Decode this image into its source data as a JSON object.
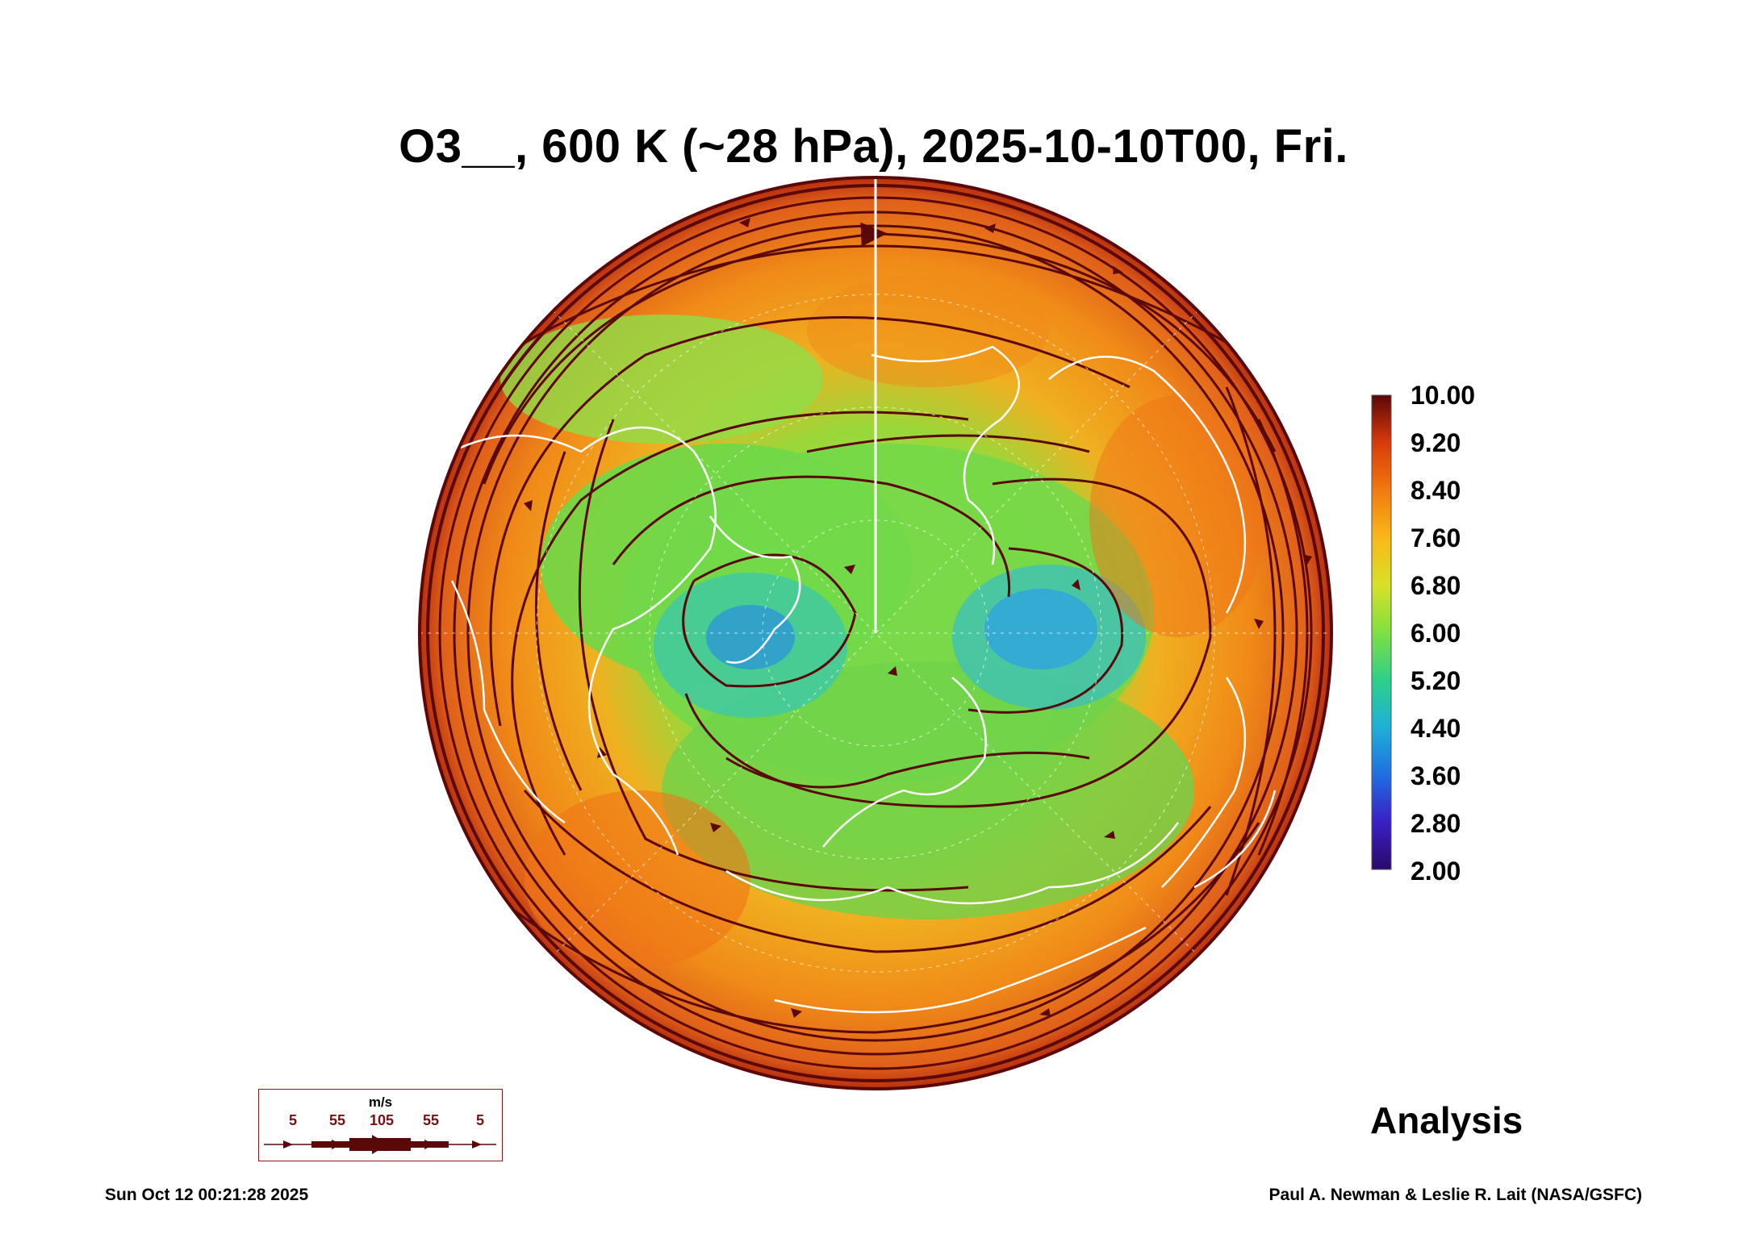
{
  "title": "O3__, 600 K (~28 hPa), 2025-10-10T00, Fri.",
  "colorbar": {
    "labels": [
      "10.00",
      "9.20",
      "8.40",
      "7.60",
      "6.80",
      "6.00",
      "5.20",
      "4.40",
      "3.60",
      "2.80",
      "2.00"
    ],
    "min": 2.0,
    "max": 10.0,
    "colors": [
      "#2a0a6a",
      "#3a1fc4",
      "#1f6fe0",
      "#1fb0d8",
      "#2ed08a",
      "#7fe040",
      "#d8e028",
      "#f8b818",
      "#f07a10",
      "#d83a0a",
      "#a01010",
      "#5a0808"
    ]
  },
  "label": "Analysis",
  "footer": {
    "timestamp": "Sun Oct 12 00:21:28 2025",
    "credit": "Paul A. Newman & Leslie R. Lait (NASA/GSFC)"
  },
  "speed_legend": {
    "unit": "m/s",
    "values": [
      "5",
      "55",
      "105",
      "55",
      "5"
    ]
  },
  "map": {
    "projection": "north polar stereographic",
    "field": "ozone mixing ratio",
    "overlay": "wind streamlines",
    "coastline_color": "#ffffff",
    "streamline_color": "#5a0808"
  }
}
